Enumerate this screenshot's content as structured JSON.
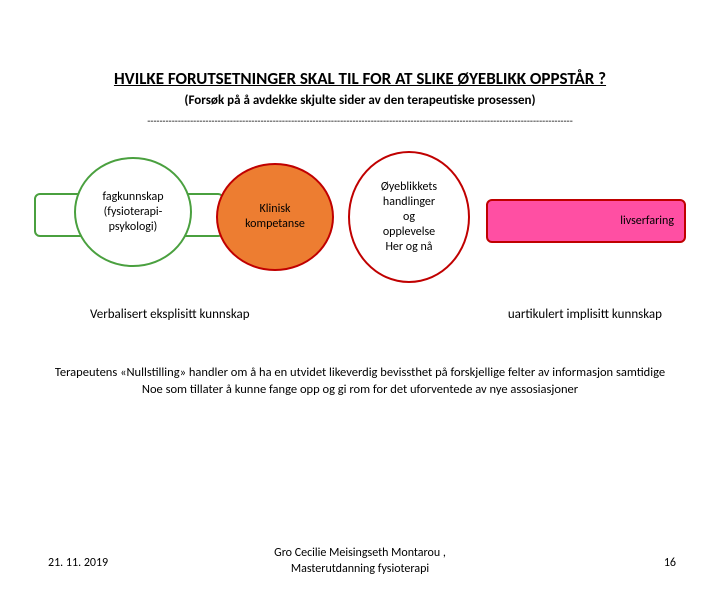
{
  "title": "HVILKE FORUTSETNINGER SKAL TIL FOR AT SLIKE ØYEBLIKK OPPSTÅR ?",
  "subtitle": "(Forsøk på å avdekke skjulte sider av den terapeutiske prosessen)",
  "dashline": "-------------------------------------------------------------------------------------------------------------------------------------------",
  "pills": {
    "left": {
      "bg": "#ffffff",
      "border": "#4aa03f",
      "text_color": "#000000"
    },
    "right": {
      "label": "livserfaring",
      "bg": "#ff4fa3",
      "border": "#c00000",
      "text_color": "#000000"
    }
  },
  "ovals": {
    "o1": {
      "lines": [
        "fagkunnskap",
        "(fysioterapi-",
        "psykologi)"
      ],
      "bg": "#ffffff",
      "border": "#4aa03f",
      "text_color": "#000000"
    },
    "o2": {
      "lines": [
        "Klinisk",
        "kompetanse"
      ],
      "bg": "#ed7d31",
      "border": "#c00000",
      "text_color": "#000000"
    },
    "o3": {
      "lines": [
        "Øyeblikkets",
        "handlinger",
        "og",
        "opplevelse",
        "Her og nå"
      ],
      "bg": "#ffffff",
      "border": "#c00000",
      "text_color": "#000000"
    }
  },
  "labels": {
    "left": "Verbalisert eksplisitt kunnskap",
    "right": "uartikulert implisitt kunnskap"
  },
  "paragraph": {
    "line1": "Terapeutens «Nullstilling» handler om å ha en utvidet likeverdig bevissthet på forskjellige felter av informasjon samtidige",
    "line2": "Noe som tillater å kunne fange opp og gi rom for det uforventede av nye assosiasjoner"
  },
  "footer": {
    "date": "21. 11. 2019",
    "center1": "Gro Cecilie Meisingseth Montarou ,",
    "center2": "Masterutdanning fysioterapi",
    "page": "16"
  },
  "colors": {
    "page_bg": "#ffffff",
    "text": "#000000"
  }
}
